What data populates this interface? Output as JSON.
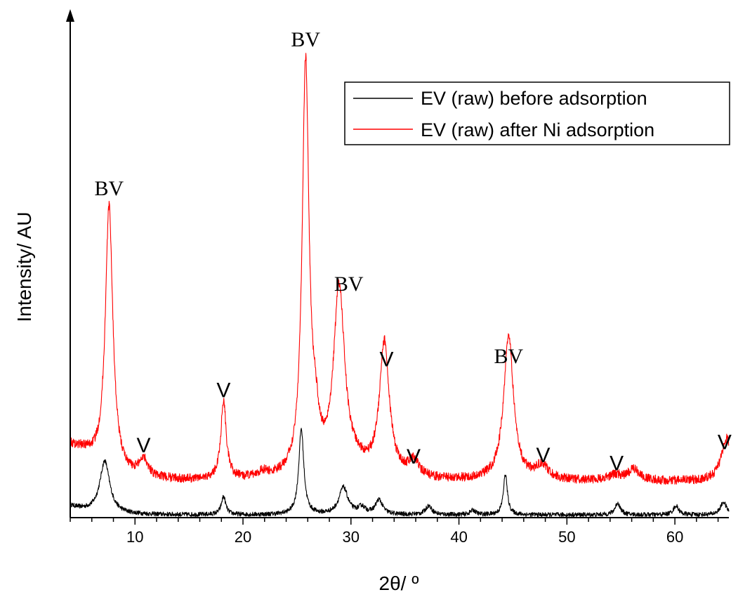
{
  "chart_data": {
    "type": "line",
    "title": "",
    "xlabel": "2θ/ º",
    "ylabel": "Intensity/ AU",
    "xlim": [
      4,
      65
    ],
    "ylim": [
      0,
      100
    ],
    "x_ticks": [
      10,
      20,
      30,
      40,
      50,
      60
    ],
    "x_minor_step": 2,
    "y_tick_labels": false,
    "grid": false,
    "legend_position": "top-right",
    "series": [
      {
        "name": "EV (raw) before adsorption",
        "color": "#000000",
        "baseline": 0.6,
        "peaks": [
          [
            7.2,
            11.5,
            0.55
          ],
          [
            18.2,
            4.0,
            0.25
          ],
          [
            25.4,
            19.0,
            0.28
          ],
          [
            29.3,
            6.0,
            0.5
          ],
          [
            31.0,
            1.5,
            0.4
          ],
          [
            32.6,
            3.2,
            0.4
          ],
          [
            37.2,
            2.0,
            0.35
          ],
          [
            41.3,
            1.0,
            0.3
          ],
          [
            44.3,
            9.0,
            0.22
          ],
          [
            54.7,
            2.6,
            0.3
          ],
          [
            60.1,
            2.0,
            0.3
          ],
          [
            64.5,
            2.8,
            0.35
          ]
        ],
        "noise": 0.5
      },
      {
        "name": "EV (raw) after Ni adsorption",
        "color": "#ff0000",
        "baseline": 8.0,
        "peaks": [
          [
            7.6,
            59.0,
            0.42
          ],
          [
            5.2,
            3.0,
            1.6
          ],
          [
            10.8,
            4.0,
            0.5
          ],
          [
            18.2,
            17.5,
            0.3
          ],
          [
            21.8,
            1.2,
            0.6
          ],
          [
            25.8,
            91.0,
            0.38
          ],
          [
            26.7,
            8.0,
            0.4
          ],
          [
            28.9,
            41.0,
            0.62
          ],
          [
            30.5,
            2.0,
            1.5
          ],
          [
            33.1,
            29.5,
            0.55
          ],
          [
            35.8,
            3.5,
            0.6
          ],
          [
            44.6,
            32.0,
            0.55
          ],
          [
            47.7,
            3.0,
            0.7
          ],
          [
            54.5,
            1.2,
            0.8
          ],
          [
            56.2,
            2.5,
            0.6
          ],
          [
            64.8,
            9.5,
            0.6
          ]
        ],
        "noise": 1.0
      }
    ],
    "annotations": [
      {
        "text": "BV",
        "x": 7.6,
        "y": 71.5,
        "style": "serif"
      },
      {
        "text": "V",
        "x": 10.8,
        "y": 14.5,
        "style": "sans"
      },
      {
        "text": "V",
        "x": 18.2,
        "y": 26.7,
        "style": "sans"
      },
      {
        "text": "BV",
        "x": 25.8,
        "y": 104.5,
        "style": "serif"
      },
      {
        "text": "BV",
        "x": 29.8,
        "y": 50.3,
        "style": "serif"
      },
      {
        "text": "V",
        "x": 33.3,
        "y": 33.6,
        "style": "sans"
      },
      {
        "text": "V",
        "x": 35.8,
        "y": 12.0,
        "style": "sans"
      },
      {
        "text": "BV",
        "x": 44.6,
        "y": 34.3,
        "style": "serif"
      },
      {
        "text": "V",
        "x": 47.8,
        "y": 12.3,
        "style": "sans"
      },
      {
        "text": "V",
        "x": 54.6,
        "y": 10.5,
        "style": "sans"
      },
      {
        "text": "V",
        "x": 64.6,
        "y": 15.2,
        "style": "sans"
      }
    ]
  }
}
